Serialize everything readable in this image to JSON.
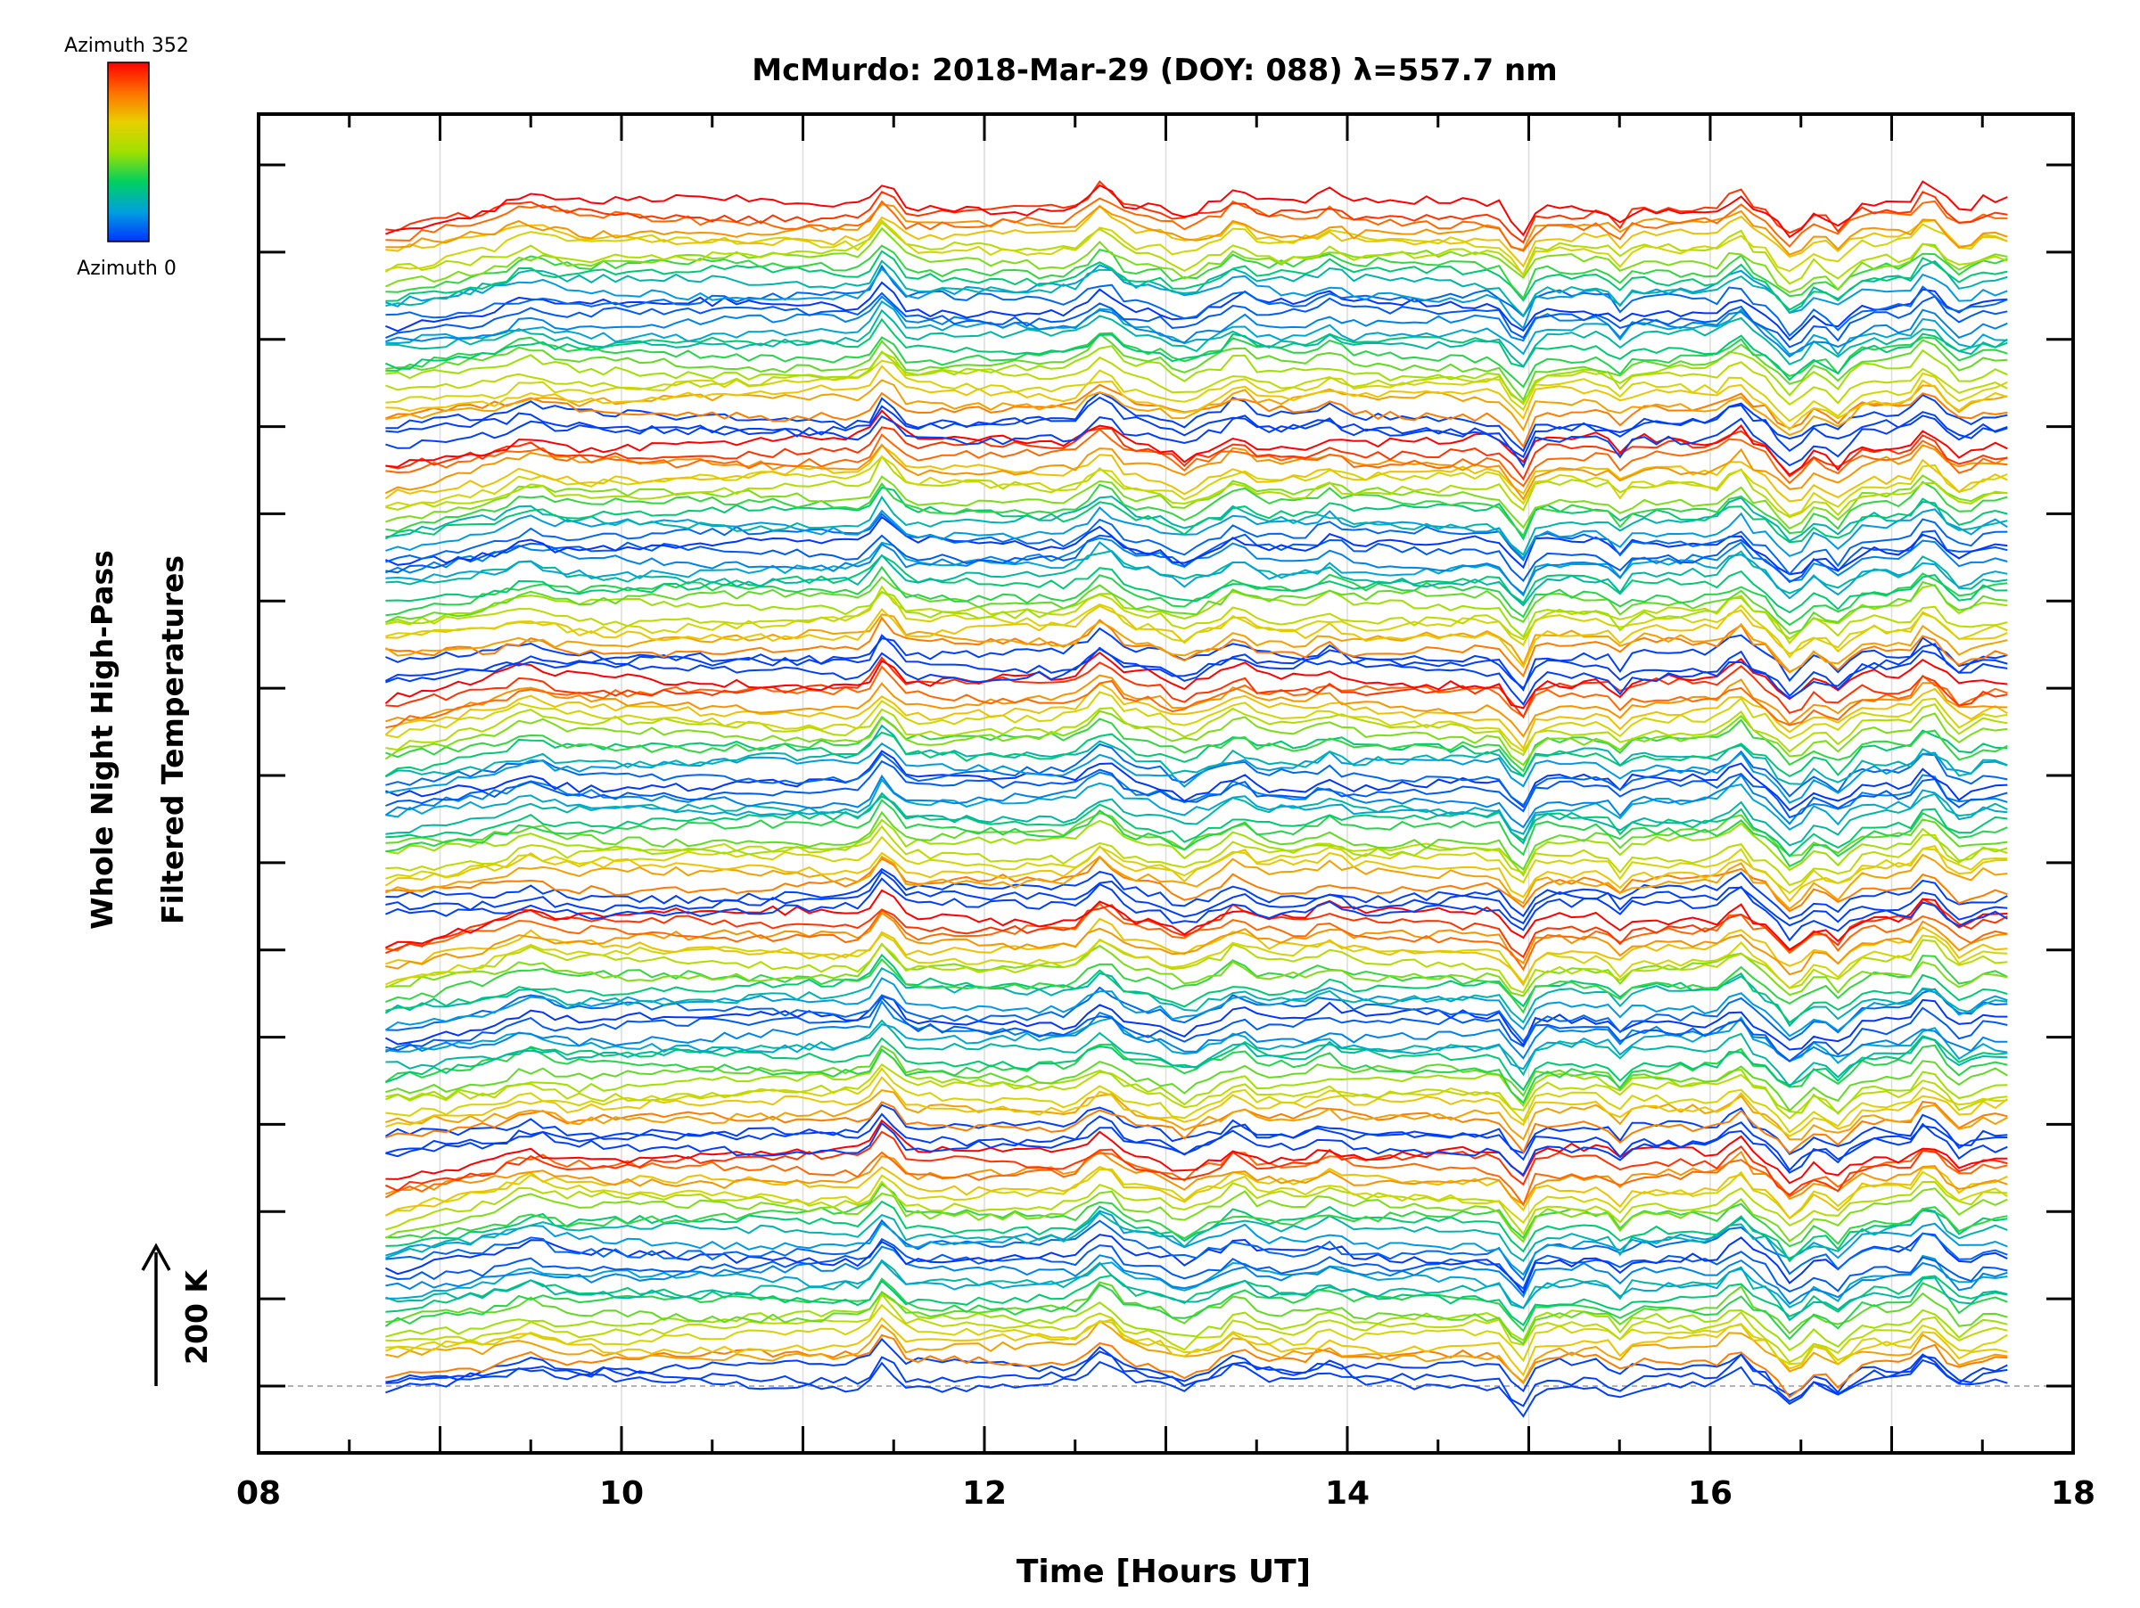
{
  "chart_data": {
    "type": "line",
    "title": "McMurdo: 2018-Mar-29 (DOY: 088) λ=557.7 nm",
    "xlabel": "Time [Hours UT]",
    "ylabel_line1": "Whole Night High-Pass",
    "ylabel_line2": "Filtered Temperatures",
    "xlim": [
      8,
      18
    ],
    "x_ticks": [
      {
        "value": 8,
        "label": "08"
      },
      {
        "value": 10,
        "label": "10"
      },
      {
        "value": 12,
        "label": "12"
      },
      {
        "value": 14,
        "label": "14"
      },
      {
        "value": 16,
        "label": "16"
      },
      {
        "value": 18,
        "label": "18"
      }
    ],
    "x_minor_step": 0.5,
    "x_gridlines": [
      9,
      10,
      11,
      12,
      13,
      14,
      15,
      16,
      17
    ],
    "y_major_tick_count": 15,
    "scale_bar_label": "200 K",
    "colorbar": {
      "top_label": "Azimuth 352",
      "bottom_label": "Azimuth 0",
      "stops": [
        "#0033ff",
        "#00a0e0",
        "#00d060",
        "#a0e000",
        "#e8d000",
        "#ff7000",
        "#ff0000"
      ]
    },
    "series_count": 150,
    "series_per_group": 30,
    "time_start": 8.7,
    "time_end": 17.65,
    "time_step": 0.0667,
    "series_note": "150 high-pass filtered temperature traces, one per azimuth, colour-coded by azimuth and vertically offset",
    "features": [
      {
        "t": 9.5,
        "amp": 0.35,
        "w": 0.12
      },
      {
        "t": 11.45,
        "amp": 1.0,
        "w": 0.07
      },
      {
        "t": 12.65,
        "amp": 0.85,
        "w": 0.1
      },
      {
        "t": 13.1,
        "amp": -0.45,
        "w": 0.1
      },
      {
        "t": 13.4,
        "amp": 0.5,
        "w": 0.07
      },
      {
        "t": 13.9,
        "amp": 0.35,
        "w": 0.08
      },
      {
        "t": 14.95,
        "amp": -1.2,
        "w": 0.06
      },
      {
        "t": 15.5,
        "amp": -0.5,
        "w": 0.05
      },
      {
        "t": 16.15,
        "amp": 0.7,
        "w": 0.06
      },
      {
        "t": 16.45,
        "amp": -1.1,
        "w": 0.1
      },
      {
        "t": 16.7,
        "amp": -0.8,
        "w": 0.08
      },
      {
        "t": 17.2,
        "amp": 0.8,
        "w": 0.06
      },
      {
        "t": 17.4,
        "amp": -0.5,
        "w": 0.05
      }
    ]
  }
}
